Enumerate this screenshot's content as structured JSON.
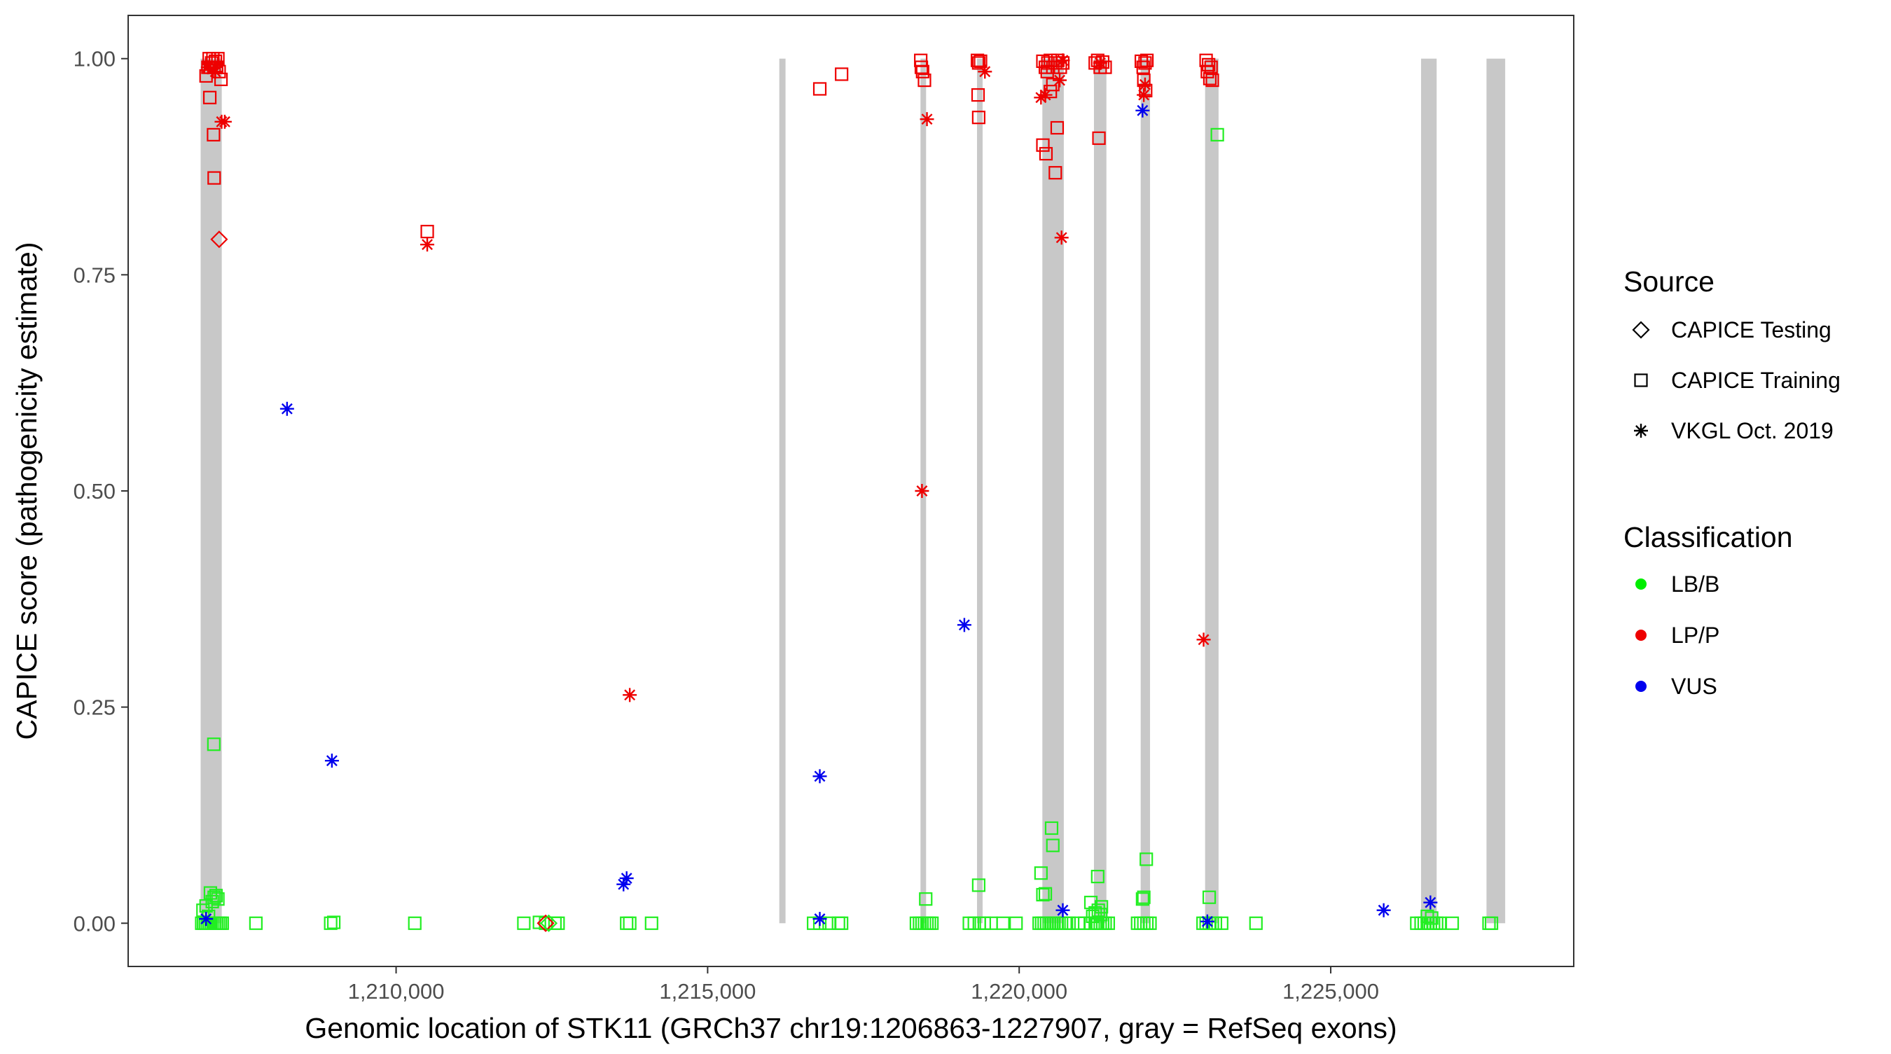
{
  "chart_data": {
    "type": "scatter",
    "title": "",
    "xlabel": "Genomic location of STK11 (GRCh37 chr19:1206863-1227907, gray = RefSeq exons)",
    "ylabel": "CAPICE score (pathogenicity estimate)",
    "xlim": [
      1205700,
      1228900
    ],
    "ylim": [
      -0.05,
      1.05
    ],
    "x_ticks": [
      1210000,
      1215000,
      1220000,
      1225000
    ],
    "x_tick_labels": [
      "1,210,000",
      "1,215,000",
      "1,220,000",
      "1,225,000"
    ],
    "y_ticks": [
      0,
      0.25,
      0.5,
      0.75,
      1
    ],
    "y_tick_labels": [
      "0.00",
      "0.25",
      "0.50",
      "0.75",
      "1.00"
    ],
    "grid": false,
    "exons": [
      [
        1206863,
        1207202
      ],
      [
        1216150,
        1216250
      ],
      [
        1218416,
        1218500
      ],
      [
        1219323,
        1219412
      ],
      [
        1220372,
        1220716
      ],
      [
        1221200,
        1221400
      ],
      [
        1221950,
        1222100
      ],
      [
        1222984,
        1223200
      ],
      [
        1226450,
        1226700
      ],
      [
        1227500,
        1227800
      ]
    ],
    "legend": {
      "placement": "right",
      "source_title": "Source",
      "source_items": [
        {
          "label": "CAPICE Testing",
          "shape": "diamond"
        },
        {
          "label": "CAPICE Training",
          "shape": "square"
        },
        {
          "label": "VKGL Oct. 2019",
          "shape": "asterisk"
        }
      ],
      "class_title": "Classification",
      "class_items": [
        {
          "label": "LB/B",
          "color": "#00ee00"
        },
        {
          "label": "LP/P",
          "color": "#ee0000"
        },
        {
          "label": "VUS",
          "color": "#0000ee"
        }
      ]
    },
    "colors": {
      "LB/B": "#22ee22",
      "LP/P": "#ee0000",
      "VUS": "#0000ee"
    },
    "series": [
      {
        "name": "CAPICE Training / LP/P",
        "shape": "square",
        "color": "#ee0000",
        "points": [
          [
            1206950,
            0.98
          ],
          [
            1206980,
            0.99
          ],
          [
            1207000,
            1.0
          ],
          [
            1207020,
            0.99
          ],
          [
            1207040,
            0.995
          ],
          [
            1207060,
            1.0
          ],
          [
            1207080,
            0.99
          ],
          [
            1207100,
            0.997
          ],
          [
            1207120,
            0.99
          ],
          [
            1207140,
            1.0
          ],
          [
            1207160,
            0.985
          ],
          [
            1207010,
            0.955
          ],
          [
            1207070,
            0.912
          ],
          [
            1207080,
            0.862
          ],
          [
            1207190,
            0.976
          ],
          [
            1210500,
            0.8
          ],
          [
            1216800,
            0.965
          ],
          [
            1217150,
            0.982
          ],
          [
            1218420,
            0.998
          ],
          [
            1218430,
            0.99
          ],
          [
            1218450,
            0.985
          ],
          [
            1218480,
            0.975
          ],
          [
            1219330,
            0.998
          ],
          [
            1219350,
            0.995
          ],
          [
            1219380,
            0.997
          ],
          [
            1219340,
            0.958
          ],
          [
            1219350,
            0.932
          ],
          [
            1220380,
            0.997
          ],
          [
            1220420,
            0.99
          ],
          [
            1220460,
            0.995
          ],
          [
            1220500,
            0.998
          ],
          [
            1220540,
            0.99
          ],
          [
            1220580,
            0.995
          ],
          [
            1220620,
            0.998
          ],
          [
            1220660,
            0.99
          ],
          [
            1220700,
            0.995
          ],
          [
            1220450,
            0.985
          ],
          [
            1220540,
            0.97
          ],
          [
            1220500,
            0.962
          ],
          [
            1220380,
            0.9
          ],
          [
            1220430,
            0.89
          ],
          [
            1220610,
            0.92
          ],
          [
            1220580,
            0.868
          ],
          [
            1221220,
            0.995
          ],
          [
            1221260,
            0.998
          ],
          [
            1221300,
            0.99
          ],
          [
            1221340,
            0.996
          ],
          [
            1221380,
            0.99
          ],
          [
            1221280,
            0.908
          ],
          [
            1221960,
            0.997
          ],
          [
            1221990,
            0.99
          ],
          [
            1222020,
            0.995
          ],
          [
            1222050,
            0.998
          ],
          [
            1222000,
            0.975
          ],
          [
            1222030,
            0.963
          ],
          [
            1223000,
            0.998
          ],
          [
            1223040,
            0.993
          ],
          [
            1223080,
            0.99
          ],
          [
            1223020,
            0.985
          ],
          [
            1223060,
            0.977
          ],
          [
            1223100,
            0.975
          ]
        ]
      },
      {
        "name": "CAPICE Training / LB/B",
        "shape": "square",
        "color": "#22ee22",
        "points": [
          [
            1206880,
            0.0
          ],
          [
            1206910,
            0.0
          ],
          [
            1206940,
            0.0
          ],
          [
            1206970,
            0.0
          ],
          [
            1207000,
            0.0
          ],
          [
            1207030,
            0.0
          ],
          [
            1207060,
            0.0
          ],
          [
            1207090,
            0.0
          ],
          [
            1207120,
            0.0
          ],
          [
            1207150,
            0.0
          ],
          [
            1207180,
            0.0
          ],
          [
            1207210,
            0.0
          ],
          [
            1206900,
            0.015
          ],
          [
            1206950,
            0.02
          ],
          [
            1206990,
            0.008
          ],
          [
            1207020,
            0.035
          ],
          [
            1207050,
            0.025
          ],
          [
            1207080,
            0.03
          ],
          [
            1207110,
            0.032
          ],
          [
            1207140,
            0.028
          ],
          [
            1207075,
            0.207
          ],
          [
            1207750,
            0.0
          ],
          [
            1208950,
            0.0
          ],
          [
            1209000,
            0.001
          ],
          [
            1210300,
            0.0
          ],
          [
            1212050,
            0.0
          ],
          [
            1212300,
            0.001
          ],
          [
            1212400,
            0.0
          ],
          [
            1212550,
            0.0
          ],
          [
            1212600,
            0.0
          ],
          [
            1213700,
            0.0
          ],
          [
            1213750,
            0.0
          ],
          [
            1214100,
            0.0
          ],
          [
            1216700,
            0.0
          ],
          [
            1216800,
            0.0
          ],
          [
            1216950,
            0.0
          ],
          [
            1217100,
            0.0
          ],
          [
            1217150,
            0.0
          ],
          [
            1218350,
            0.0
          ],
          [
            1218400,
            0.0
          ],
          [
            1218440,
            0.0
          ],
          [
            1218480,
            0.0
          ],
          [
            1218520,
            0.0
          ],
          [
            1218560,
            0.0
          ],
          [
            1218600,
            0.0
          ],
          [
            1218500,
            0.028
          ],
          [
            1219200,
            0.0
          ],
          [
            1219280,
            0.0
          ],
          [
            1219360,
            0.0
          ],
          [
            1219440,
            0.0
          ],
          [
            1219550,
            0.0
          ],
          [
            1219740,
            0.0
          ],
          [
            1219950,
            0.0
          ],
          [
            1219350,
            0.044
          ],
          [
            1220320,
            0.0
          ],
          [
            1220360,
            0.0
          ],
          [
            1220400,
            0.0
          ],
          [
            1220440,
            0.0
          ],
          [
            1220480,
            0.0
          ],
          [
            1220520,
            0.0
          ],
          [
            1220560,
            0.0
          ],
          [
            1220600,
            0.0
          ],
          [
            1220640,
            0.0
          ],
          [
            1220680,
            0.0
          ],
          [
            1220740,
            0.0
          ],
          [
            1220800,
            0.0
          ],
          [
            1220350,
            0.058
          ],
          [
            1220380,
            0.033
          ],
          [
            1220420,
            0.034
          ],
          [
            1220520,
            0.11
          ],
          [
            1220540,
            0.09
          ],
          [
            1220950,
            0.0
          ],
          [
            1221050,
            0.0
          ],
          [
            1221150,
            0.0
          ],
          [
            1221220,
            0.0
          ],
          [
            1221260,
            0.0
          ],
          [
            1221300,
            0.0
          ],
          [
            1221340,
            0.0
          ],
          [
            1221380,
            0.0
          ],
          [
            1221430,
            0.0
          ],
          [
            1221180,
            0.008
          ],
          [
            1221220,
            0.012
          ],
          [
            1221270,
            0.015
          ],
          [
            1221310,
            0.01
          ],
          [
            1221150,
            0.024
          ],
          [
            1221320,
            0.019
          ],
          [
            1221260,
            0.054
          ],
          [
            1221900,
            0.0
          ],
          [
            1221950,
            0.0
          ],
          [
            1222000,
            0.0
          ],
          [
            1222050,
            0.0
          ],
          [
            1222100,
            0.0
          ],
          [
            1221980,
            0.028
          ],
          [
            1222000,
            0.03
          ],
          [
            1222040,
            0.074
          ],
          [
            1222950,
            0.0
          ],
          [
            1223000,
            0.0
          ],
          [
            1223050,
            0.0
          ],
          [
            1223100,
            0.0
          ],
          [
            1223150,
            0.0
          ],
          [
            1223250,
            0.0
          ],
          [
            1223800,
            0.0
          ],
          [
            1223050,
            0.03
          ],
          [
            1223180,
            0.912
          ],
          [
            1226380,
            0.0
          ],
          [
            1226450,
            0.0
          ],
          [
            1226500,
            0.0
          ],
          [
            1226550,
            0.0
          ],
          [
            1226600,
            0.0
          ],
          [
            1226650,
            0.0
          ],
          [
            1226700,
            0.0
          ],
          [
            1226750,
            0.0
          ],
          [
            1226950,
            0.0
          ],
          [
            1226550,
            0.008
          ],
          [
            1226620,
            0.006
          ],
          [
            1227540,
            0.0
          ],
          [
            1227580,
            0.0
          ]
        ]
      },
      {
        "name": "CAPICE Testing / LP/P",
        "shape": "diamond",
        "color": "#ee0000",
        "points": [
          [
            1207160,
            0.791
          ],
          [
            1212400,
            0.0
          ]
        ]
      },
      {
        "name": "CAPICE Testing / LB/B",
        "shape": "diamond",
        "color": "#22ee22",
        "points": [
          [
            1212450,
            0.0
          ]
        ]
      },
      {
        "name": "VKGL Oct. 2019 / LP/P",
        "shape": "asterisk",
        "color": "#ee0000",
        "points": [
          [
            1206980,
            0.99
          ],
          [
            1207100,
            0.985
          ],
          [
            1207200,
            0.927
          ],
          [
            1207250,
            0.927
          ],
          [
            1210500,
            0.785
          ],
          [
            1213750,
            0.264
          ],
          [
            1218440,
            0.5
          ],
          [
            1218520,
            0.93
          ],
          [
            1219450,
            0.985
          ],
          [
            1220350,
            0.955
          ],
          [
            1220420,
            0.958
          ],
          [
            1220650,
            0.975
          ],
          [
            1220700,
            0.998
          ],
          [
            1220680,
            0.793
          ],
          [
            1221300,
            0.995
          ],
          [
            1222000,
            0.958
          ],
          [
            1222020,
            0.97
          ],
          [
            1222960,
            0.328
          ]
        ]
      },
      {
        "name": "VKGL Oct. 2019 / VUS",
        "shape": "asterisk",
        "color": "#0000ee",
        "points": [
          [
            1206950,
            0.005
          ],
          [
            1208250,
            0.595
          ],
          [
            1208970,
            0.188
          ],
          [
            1213650,
            0.045
          ],
          [
            1213700,
            0.052
          ],
          [
            1216800,
            0.17
          ],
          [
            1216800,
            0.005
          ],
          [
            1219120,
            0.345
          ],
          [
            1220700,
            0.015
          ],
          [
            1221980,
            0.94
          ],
          [
            1223020,
            0.002
          ],
          [
            1225850,
            0.015
          ],
          [
            1226600,
            0.024
          ]
        ]
      }
    ]
  }
}
